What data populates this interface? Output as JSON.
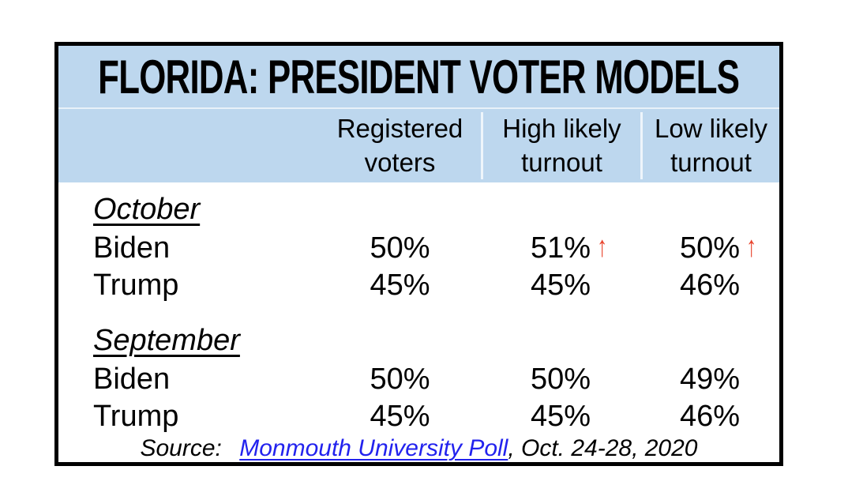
{
  "title": "FLORIDA: PRESIDENT VOTER MODELS",
  "columns": [
    {
      "line1": "Registered",
      "line2": "voters"
    },
    {
      "line1": "High likely",
      "line2": "turnout"
    },
    {
      "line1": "Low likely",
      "line2": "turnout"
    }
  ],
  "sections": [
    {
      "label": "October",
      "rows": [
        {
          "name": "Biden",
          "registered": "50%",
          "high": "51%",
          "high_arrow": "↑",
          "low": "50%",
          "low_arrow": "↑"
        },
        {
          "name": "Trump",
          "registered": "45%",
          "high": "45%",
          "low": "46%"
        }
      ]
    },
    {
      "label": "September",
      "rows": [
        {
          "name": "Biden",
          "registered": "50%",
          "high": "50%",
          "low": "49%"
        },
        {
          "name": "Trump",
          "registered": "45%",
          "high": "45%",
          "low": "46%"
        }
      ]
    }
  ],
  "source": {
    "prefix": "Source: ",
    "link": "Monmouth University Poll",
    "suffix": ", Oct. 24-28, 2020"
  },
  "icons": {
    "up_arrow": "↑"
  },
  "colors": {
    "header_bg": "#BDD7EE",
    "border": "#000000",
    "link": "#2222EE",
    "arrow": "#E8432C"
  },
  "chart_data": {
    "type": "table",
    "title": "FLORIDA: PRESIDENT VOTER MODELS",
    "columns": [
      "",
      "Registered voters",
      "High likely turnout",
      "Low likely turnout"
    ],
    "rows": [
      [
        "October",
        "",
        "",
        ""
      ],
      [
        "Biden",
        "50%",
        "51% ↑",
        "50% ↑"
      ],
      [
        "Trump",
        "45%",
        "45%",
        "46%"
      ],
      [
        "September",
        "",
        "",
        ""
      ],
      [
        "Biden",
        "50%",
        "50%",
        "49%"
      ],
      [
        "Trump",
        "45%",
        "45%",
        "46%"
      ]
    ],
    "source": "Source: Monmouth University Poll, Oct. 24-28, 2020"
  }
}
